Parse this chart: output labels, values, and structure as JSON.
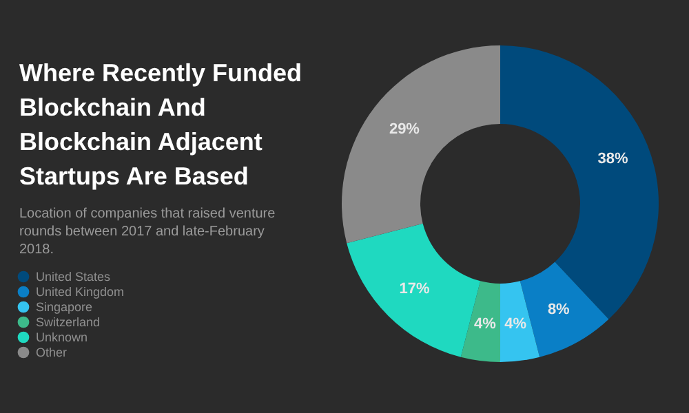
{
  "chart_data": {
    "type": "donut",
    "title": "Where Recently Funded Blockchain And Blockchain Adjacent Startups Are Based",
    "subtitle": "Location of companies that raised venture rounds between 2017 and late-February 2018.",
    "categories": [
      "United States",
      "United Kingdom",
      "Singapore",
      "Switzerland",
      "Unknown",
      "Other"
    ],
    "values": [
      38,
      8,
      4,
      4,
      17,
      29
    ],
    "value_labels": [
      "38%",
      "8%",
      "4%",
      "4%",
      "17%",
      "29%"
    ],
    "colors": [
      "#004a7c",
      "#0a7fc6",
      "#35c4f0",
      "#3dba8a",
      "#1fd9c0",
      "#8a8a8a"
    ],
    "legend": "left"
  }
}
